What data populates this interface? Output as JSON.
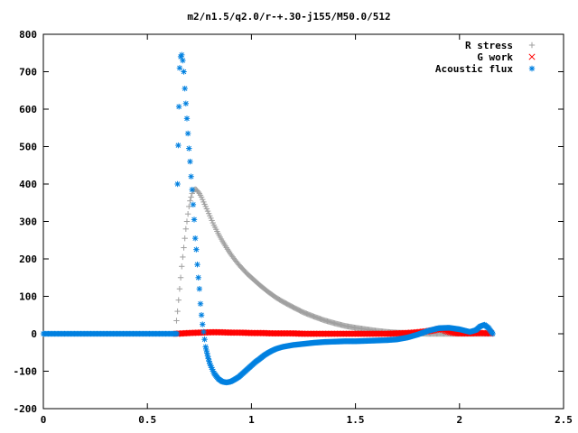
{
  "chart_data": {
    "type": "scatter",
    "title": "m2/n1.5/q2.0/r-+.30-j155/M50.0/512",
    "xlabel": "",
    "ylabel": "",
    "xlim": [
      0,
      2.5
    ],
    "ylim": [
      -200,
      800
    ],
    "x_ticks": [
      "0",
      "0.5",
      "1",
      "1.5",
      "2",
      "2.5"
    ],
    "x_tick_values": [
      0,
      0.5,
      1,
      1.5,
      2,
      2.5
    ],
    "y_ticks": [
      "-200",
      "-100",
      "0",
      "100",
      "200",
      "300",
      "400",
      "500",
      "600",
      "700",
      "800"
    ],
    "y_tick_values": [
      -200,
      -100,
      0,
      100,
      200,
      300,
      400,
      500,
      600,
      700,
      800
    ],
    "grid": false,
    "legend_position": "top-right",
    "series": [
      {
        "name": "R stress",
        "marker": "+",
        "color": "#a0a0a0",
        "x": [
          0.64,
          0.645,
          0.65,
          0.655,
          0.66,
          0.665,
          0.67,
          0.675,
          0.68,
          0.685,
          0.69,
          0.695,
          0.7,
          0.705,
          0.71,
          0.715,
          0.72,
          0.725,
          0.73,
          0.735,
          0.74,
          0.75,
          0.76,
          0.77,
          0.78,
          0.8,
          0.82,
          0.84,
          0.86,
          0.88,
          0.9,
          0.92,
          0.94,
          0.96,
          0.98,
          1.0,
          1.02,
          1.04,
          1.06,
          1.08,
          1.1,
          1.12,
          1.15,
          1.2,
          1.25,
          1.3,
          1.35,
          1.4,
          1.45,
          1.5,
          1.55,
          1.6,
          1.65,
          1.7,
          1.75,
          1.8,
          1.85,
          1.9,
          1.95,
          2.0,
          2.05,
          2.1,
          2.15
        ],
        "y": [
          35,
          60,
          90,
          120,
          150,
          180,
          205,
          230,
          255,
          280,
          300,
          320,
          340,
          355,
          365,
          375,
          382,
          385,
          386,
          385,
          382,
          375,
          365,
          352,
          340,
          315,
          290,
          268,
          248,
          230,
          213,
          198,
          184,
          172,
          160,
          150,
          140,
          130,
          121,
          112,
          104,
          96,
          86,
          71,
          57,
          46,
          36,
          28,
          21,
          16,
          12,
          8,
          5,
          3,
          2,
          1,
          0,
          0,
          0,
          0,
          0,
          0,
          0
        ]
      },
      {
        "name": "G work",
        "marker": "x",
        "color": "#ff0000",
        "x": [
          0.64,
          0.7,
          0.75,
          0.8,
          0.85,
          0.9,
          0.95,
          1.0,
          1.05,
          1.1,
          1.15,
          1.2,
          1.25,
          1.3,
          1.35,
          1.4,
          1.45,
          1.5,
          1.55,
          1.6,
          1.65,
          1.7,
          1.75,
          1.8,
          1.85,
          1.88,
          1.9,
          1.92,
          1.94,
          1.96,
          1.98,
          2.0,
          2.05,
          2.1,
          2.15
        ],
        "y": [
          0,
          2,
          3,
          4,
          4,
          3,
          3,
          2,
          2,
          1,
          1,
          1,
          0,
          0,
          0,
          0,
          0,
          0,
          0,
          0,
          0,
          1,
          2,
          4,
          7,
          10,
          13,
          11,
          7,
          4,
          2,
          1,
          1,
          2,
          1
        ]
      },
      {
        "name": "Acoustic flux",
        "marker": "*",
        "color": "#0080e0",
        "x": [
          0.645,
          0.655,
          0.66,
          0.665,
          0.67,
          0.675,
          0.68,
          0.685,
          0.69,
          0.695,
          0.7,
          0.705,
          0.71,
          0.715,
          0.72,
          0.725,
          0.73,
          0.735,
          0.74,
          0.745,
          0.75,
          0.755,
          0.76,
          0.765,
          0.77,
          0.775,
          0.78,
          0.79,
          0.8,
          0.82,
          0.84,
          0.86,
          0.88,
          0.9,
          0.92,
          0.94,
          0.96,
          0.98,
          1.0,
          1.02,
          1.04,
          1.06,
          1.08,
          1.1,
          1.12,
          1.15,
          1.2,
          1.25,
          1.3,
          1.35,
          1.4,
          1.45,
          1.5,
          1.55,
          1.6,
          1.65,
          1.7,
          1.75,
          1.8,
          1.85,
          1.9,
          1.95,
          2.0,
          2.05,
          2.08,
          2.1,
          2.12,
          2.14,
          2.16
        ],
        "y": [
          400,
          710,
          740,
          745,
          730,
          700,
          655,
          615,
          575,
          535,
          495,
          460,
          420,
          385,
          345,
          305,
          255,
          225,
          185,
          150,
          120,
          80,
          50,
          25,
          5,
          -15,
          -35,
          -60,
          -80,
          -105,
          -120,
          -128,
          -130,
          -128,
          -122,
          -115,
          -105,
          -95,
          -85,
          -75,
          -67,
          -58,
          -51,
          -45,
          -40,
          -35,
          -30,
          -27,
          -24,
          -22,
          -21,
          -20,
          -20,
          -19,
          -18,
          -17,
          -15,
          -10,
          -2,
          8,
          15,
          16,
          12,
          5,
          10,
          20,
          24,
          15,
          0
        ]
      }
    ]
  }
}
